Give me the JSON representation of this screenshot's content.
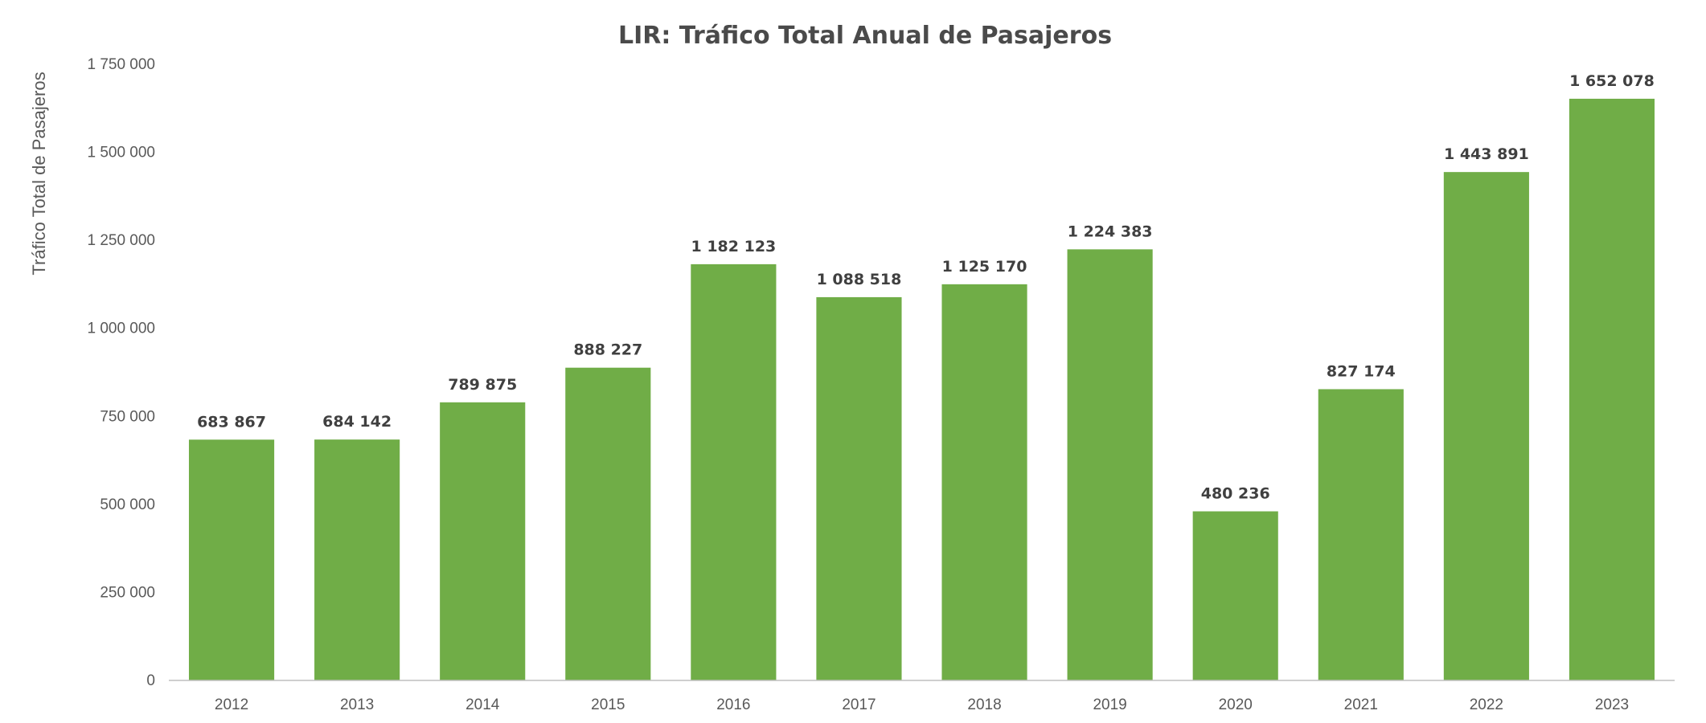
{
  "chart_data": {
    "type": "bar",
    "title": "LIR: Tráfico Total Anual de Pasajeros",
    "xlabel": "",
    "ylabel": "Tráfico Total de Pasajeros",
    "categories": [
      "2012",
      "2013",
      "2014",
      "2015",
      "2016",
      "2017",
      "2018",
      "2019",
      "2020",
      "2021",
      "2022",
      "2023"
    ],
    "values": [
      683867,
      684142,
      789875,
      888227,
      1182123,
      1088518,
      1125170,
      1224383,
      480236,
      827174,
      1443891,
      1652078
    ],
    "data_labels": [
      "683 867",
      "684 142",
      "789 875",
      "888 227",
      "1 182 123",
      "1 088 518",
      "1 125 170",
      "1 224 383",
      "480 236",
      "827 174",
      "1 443 891",
      "1 652 078"
    ],
    "ylim": [
      0,
      1750000
    ],
    "yticks": [
      0,
      250000,
      500000,
      750000,
      1000000,
      1250000,
      1500000,
      1750000
    ],
    "ytick_labels": [
      "0",
      "250 000",
      "500 000",
      "750 000",
      "1 000 000",
      "1 250 000",
      "1 500 000",
      "1 750 000"
    ],
    "grid": false,
    "legend": "none",
    "bar_color": "#70ad47"
  }
}
